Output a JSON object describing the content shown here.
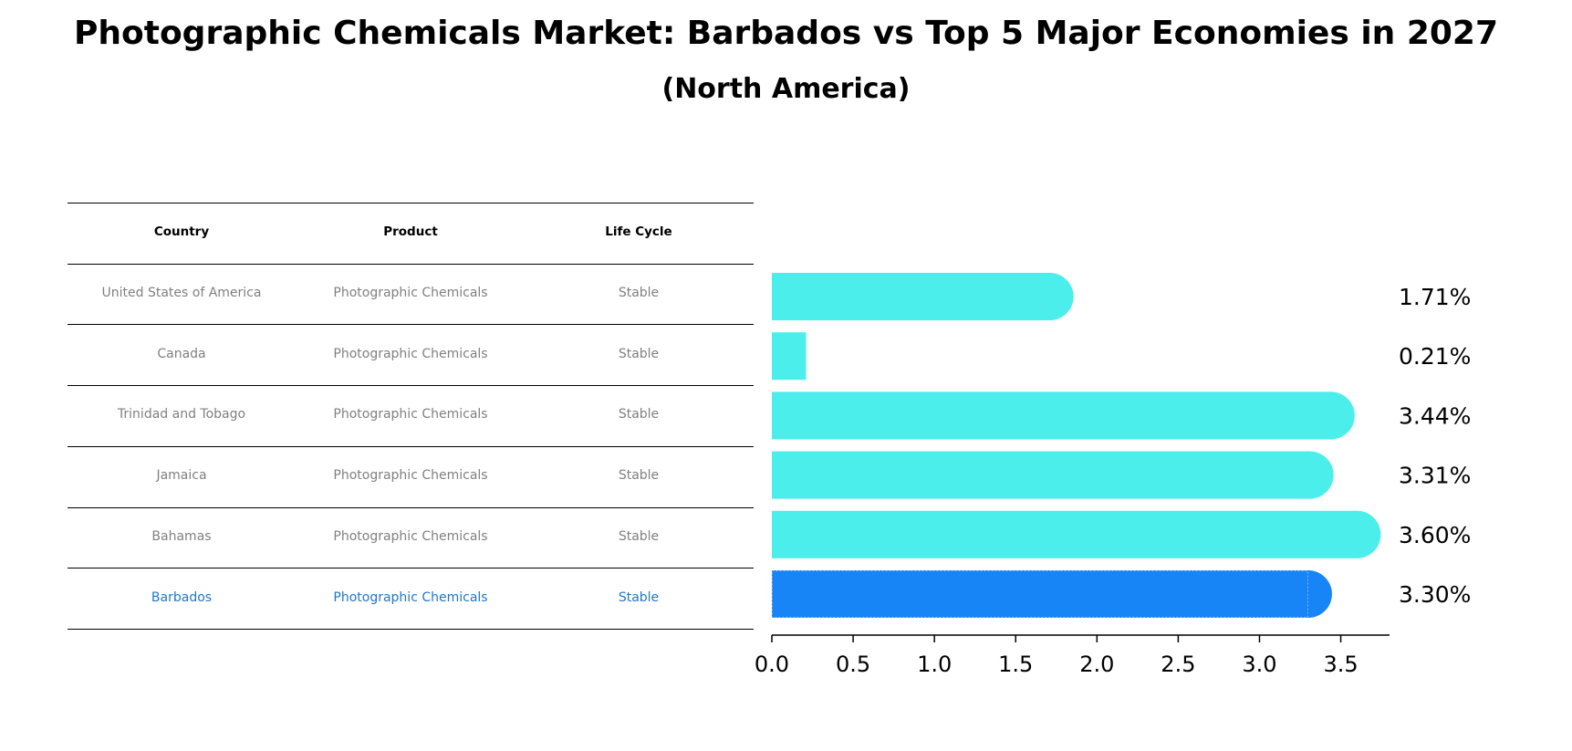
{
  "title": "Photographic Chemicals Market: Barbados vs Top 5 Major Economies in 2027",
  "subtitle": "(North America)",
  "table": {
    "headers": [
      "Country",
      "Product",
      "Life Cycle"
    ],
    "rows": [
      [
        "United States of America",
        "Photographic Chemicals",
        "Stable"
      ],
      [
        "Canada",
        "Photographic Chemicals",
        "Stable"
      ],
      [
        "Trinidad and Tobago",
        "Photographic Chemicals",
        "Stable"
      ],
      [
        "Jamaica",
        "Photographic Chemicals",
        "Stable"
      ],
      [
        "Bahamas",
        "Photographic Chemicals",
        "Stable"
      ],
      [
        "Barbados",
        "Photographic Chemicals",
        "Stable"
      ]
    ],
    "highlight_row": 5,
    "highlight_color": "#1f77c8"
  },
  "chart_data": {
    "type": "bar",
    "orientation": "horizontal",
    "categories": [
      "United States of America",
      "Canada",
      "Trinidad and Tobago",
      "Jamaica",
      "Bahamas",
      "Barbados"
    ],
    "values": [
      1.71,
      0.21,
      3.44,
      3.31,
      3.6,
      3.3
    ],
    "value_labels": [
      "1.71%",
      "0.21%",
      "3.44%",
      "3.31%",
      "3.60%",
      "3.30%"
    ],
    "xlim": [
      0,
      3.8
    ],
    "xticks": [
      "0.0",
      "0.5",
      "1.0",
      "1.5",
      "2.0",
      "2.5",
      "3.0",
      "3.5"
    ],
    "colors": {
      "default": "#4beeea",
      "highlight": "#1785f5"
    },
    "highlight_index": 5,
    "grid": false
  }
}
